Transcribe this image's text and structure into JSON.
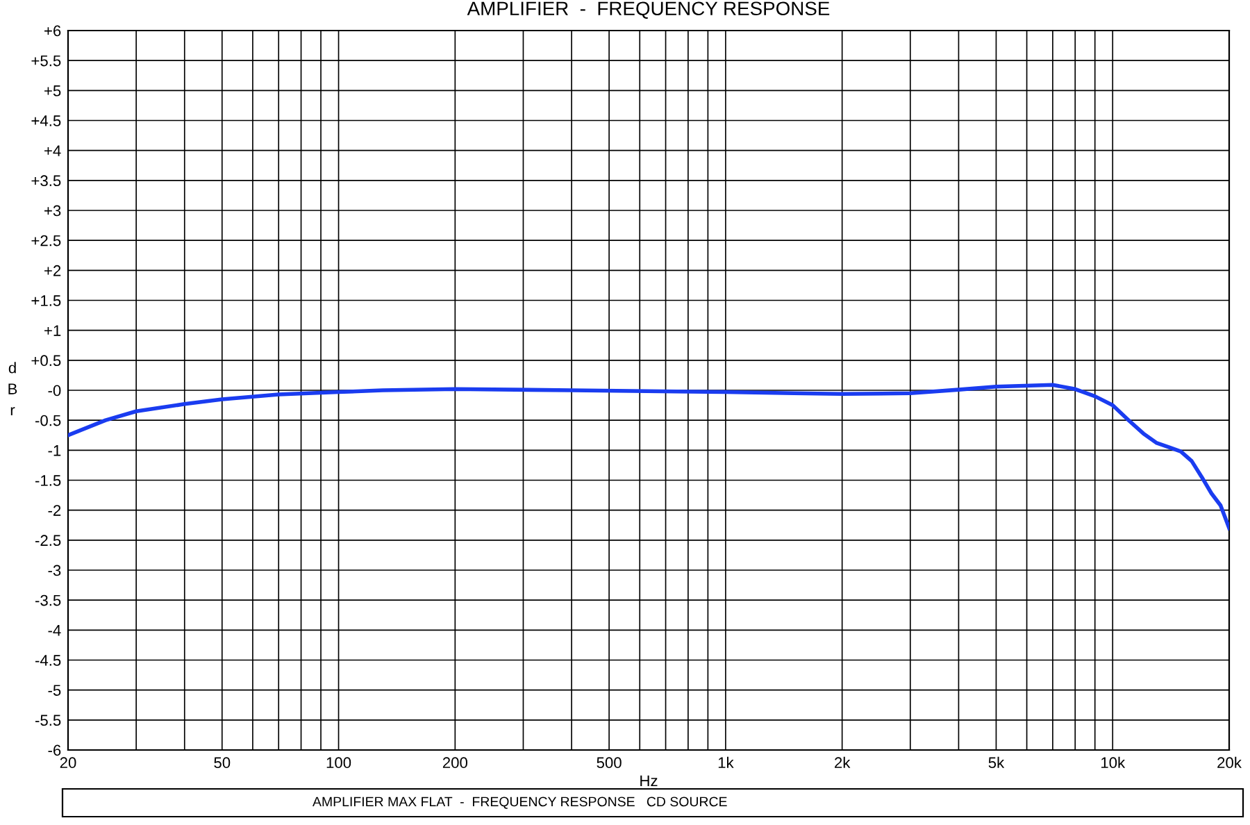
{
  "chart_data": {
    "type": "line",
    "title": "AMPLIFIER  -  FREQUENCY RESPONSE",
    "xlabel": "Hz",
    "ylabel": "dBr",
    "annotations": [
      "AMPLIFIER MAX FLAT  -  FREQUENCY RESPONSE   CD SOURCE"
    ],
    "log": "x",
    "grid": true,
    "marker": "none",
    "line_style": "solid",
    "xlim": [
      20,
      20000
    ],
    "ylim": [
      -6,
      6
    ],
    "xticks": [
      20,
      {
        "value": 30,
        "label": null
      },
      {
        "value": 40,
        "label": null
      },
      50,
      {
        "value": 60,
        "label": null
      },
      {
        "value": 70,
        "label": null
      },
      {
        "value": 80,
        "label": null
      },
      {
        "value": 90,
        "label": null
      },
      100,
      200,
      {
        "value": 300,
        "label": null
      },
      {
        "value": 400,
        "label": null
      },
      500,
      {
        "value": 600,
        "label": null
      },
      {
        "value": 700,
        "label": null
      },
      {
        "value": 800,
        "label": null
      },
      {
        "value": 900,
        "label": null
      },
      {
        "value": 1000,
        "label": "1k"
      },
      {
        "value": 2000,
        "label": "2k"
      },
      {
        "value": 3000,
        "label": null
      },
      {
        "value": 4000,
        "label": null
      },
      {
        "value": 5000,
        "label": "5k"
      },
      {
        "value": 6000,
        "label": null
      },
      {
        "value": 7000,
        "label": null
      },
      {
        "value": 8000,
        "label": null
      },
      {
        "value": 9000,
        "label": null
      },
      {
        "value": 10000,
        "label": "10k"
      },
      {
        "value": 20000,
        "label": "20k"
      }
    ],
    "yticks": [
      {
        "value": 6,
        "label": "+6"
      },
      {
        "value": 5.5,
        "label": "+5.5"
      },
      {
        "value": 5,
        "label": "+5"
      },
      {
        "value": 4.5,
        "label": "+4.5"
      },
      {
        "value": 4,
        "label": "+4"
      },
      {
        "value": 3.5,
        "label": "+3.5"
      },
      {
        "value": 3,
        "label": "+3"
      },
      {
        "value": 2.5,
        "label": "+2.5"
      },
      {
        "value": 2,
        "label": "+2"
      },
      {
        "value": 1.5,
        "label": "+1.5"
      },
      {
        "value": 1,
        "label": "+1"
      },
      {
        "value": 0.5,
        "label": "+0.5"
      },
      {
        "value": 0,
        "label": "-0"
      },
      -0.5,
      -1,
      -1.5,
      -2,
      -2.5,
      -3,
      -3.5,
      -4,
      -4.5,
      -5,
      -5.5,
      -6
    ],
    "x": [
      20,
      25,
      30,
      40,
      50,
      70,
      100,
      130,
      200,
      400,
      1000,
      1500,
      2000,
      3000,
      4000,
      5000,
      7000,
      8000,
      9000,
      10000,
      11000,
      12000,
      13000,
      14000,
      15000,
      16000,
      17000,
      18000,
      19000,
      20000
    ],
    "series": [
      {
        "color": "#1a3cf0",
        "values": [
          -0.75,
          -0.5,
          -0.35,
          -0.23,
          -0.15,
          -0.07,
          -0.03,
          0,
          0.02,
          0,
          -0.03,
          -0.05,
          -0.06,
          -0.05,
          0.01,
          0.06,
          0.09,
          0.02,
          -0.1,
          -0.25,
          -0.5,
          -0.72,
          -0.88,
          -0.95,
          -1.02,
          -1.18,
          -1.45,
          -1.72,
          -1.92,
          -2.3
        ]
      }
    ]
  }
}
